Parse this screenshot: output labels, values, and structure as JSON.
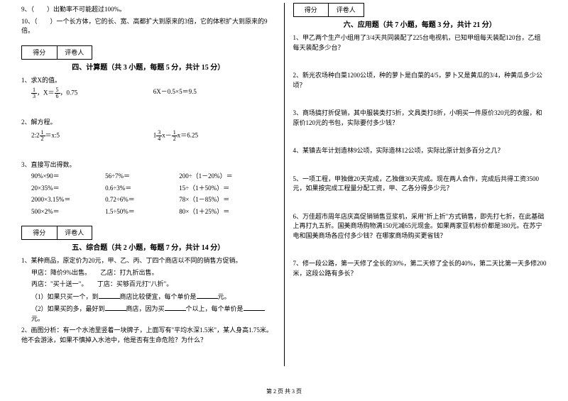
{
  "left": {
    "q9": "9、（　　）出勤率不可能超过100%。",
    "q10": "10、（　　）一个长方体，它的长、宽、高都扩大到原来的3倍，它的体积扩大到原来的9倍。",
    "score_a": "得分",
    "score_b": "评卷人",
    "sec4_title": "四、计算题（共 3 小题，每题 5 分，共计 15 分）",
    "s4_1": "1、求X的值。",
    "s4_1a_pre": "，X＝",
    "s4_1a_suf": "，0.75",
    "s4_1b": "6X－0.5×5＝9.5",
    "s4_2": "2、解方程。",
    "s4_2a_pre": "2:2",
    "s4_2a_suf": "＝x:5",
    "s4_2b_pre": "1",
    "s4_2b_mid": "x－",
    "s4_2b_suf": "x＝6.25",
    "s4_3": "3、直接写出得数。",
    "r1a": "90%×90＝",
    "r1b": "56÷7%＝",
    "r1c": "200÷（1－20%）＝",
    "r2a": "20×35%＝",
    "r2b": "0.6÷3%＝",
    "r2c": "15÷（1＋50%）＝",
    "r3a": "2000×3.15%＝",
    "r3b": "0.72÷6%＝",
    "r3c": "78×（1－85%）＝",
    "r4a": "500×2%＝",
    "r4b": "1.5÷50%＝",
    "r4c": "80×（1＋25%）＝",
    "sec5_title": "五、综合题（共 2 小题，每题 7 分，共计 14 分）",
    "s5_1": "1、某种商品，原定价为20元，甲、乙、丙、丁四个商店以不同的销售方促销。",
    "s5_1a": "甲店：降价9%出售。　　乙店：打九折出售。",
    "s5_1b": "丙店：\"买十送一\"。　　丁店：买够百元打\"八折\"。",
    "s5_1c_pre": "（1）如果只买一个，到",
    "s5_1c_mid": "商店比较便宜，每个单价是",
    "s5_1c_suf": "元。",
    "s5_1d_pre": "（2）如果买的多，最好到",
    "s5_1d_mid": "商店，因为买",
    "s5_1d_mid2": "个以上，每个单价是",
    "s5_1d_suf": "元。",
    "s5_2": "2、画图分析：有一个水池里竖着一块牌子，上面写有\"平均水深1.5米\"，某人身高1.75米。他不会游泳，如果不慎掉入水池中，他是否有生命危险？为什么？"
  },
  "right": {
    "score_a": "得分",
    "score_b": "评卷人",
    "sec6_title": "六、应用题（共 7 小题，每题 3 分，共计 21 分）",
    "r1": "1、甲乙两个生产小组用了3/4天共同装配了225台电视机，已知甲组每天装配120台，乙组每天装配多少台？",
    "r2": "2、新光农场种白菜1200公顷，种的萝卜是白菜的4/5，萝卜又是黄瓜的3/4，种黄瓜多少公顷？",
    "r3": "3、商场搞打折促销，其中服装类打5折，文具类打8折，小明买一件原价320元的衣服，和原价120元的书包，实际要付多少钱？",
    "r4": "4、某镇去年计划造林9公顷，实际造林12公顷，实际比原计划多百分之几？",
    "r5": "5、一项工程，甲独做20天完成，乙独做30天完成。现在两人合作，完成后共得工资3500元，如果按完成工程量分配工资，甲、乙各分得多少元？",
    "r6": "6、万佳超市周年店庆高促销销售豆浆机，采用\"折上折\"方式销售，即先打七折，在此基础上再打九五折。国美商场购物满150元减65元现金。如果两家豆机标价都是380元。在苏宁电和国美商场各应付多少钱？在哪家商场购买更省钱？",
    "r7": "7、修一段公路，第一天修了全长的30%，第二天修了全长的40%，第二天比第一天多修200米，这段公路有多长？"
  },
  "footer": "第 2 页 共 3 页"
}
